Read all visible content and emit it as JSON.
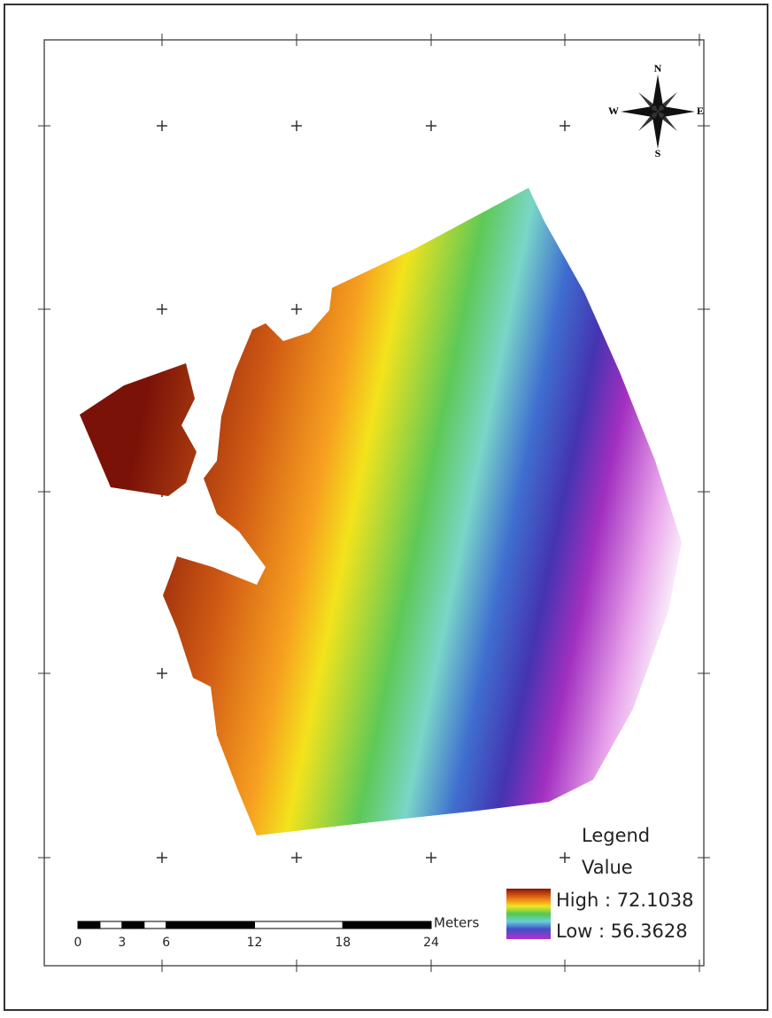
{
  "compass": {
    "north": "N",
    "south": "S",
    "east": "E",
    "west": "W"
  },
  "legend": {
    "title": "Legend",
    "subtitle": "Value",
    "high": "High : 72.1038",
    "low": "Low : 56.3628"
  },
  "scale_bar": {
    "unit": "Meters",
    "labels": [
      0,
      3,
      6,
      12,
      18,
      24
    ]
  }
}
